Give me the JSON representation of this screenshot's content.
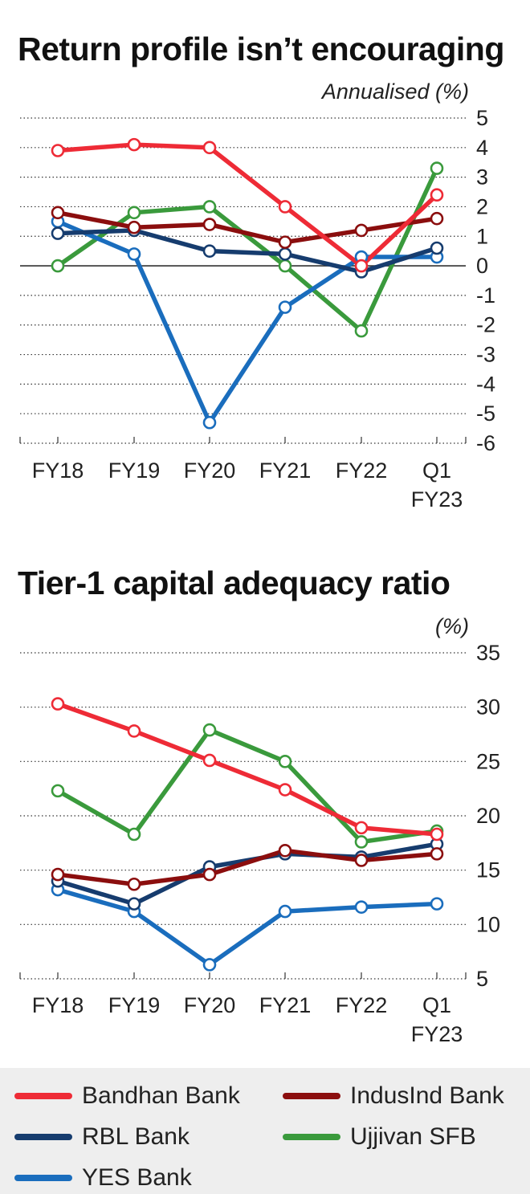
{
  "colors": {
    "Bandhan Bank": "#ee2b36",
    "IndusInd Bank": "#8b0e0e",
    "RBL Bank": "#163c6e",
    "Ujjivan SFB": "#3a9a3c",
    "YES Bank": "#1a6dbd"
  },
  "chart_data": [
    {
      "type": "line",
      "title": "Return profile isn’t encouraging",
      "ylabel": "Annualised (%)",
      "categories": [
        "FY18",
        "FY19",
        "FY20",
        "FY21",
        "FY22",
        "Q1 FY23"
      ],
      "category_lines": [
        [
          "FY18"
        ],
        [
          "FY19"
        ],
        [
          "FY20"
        ],
        [
          "FY21"
        ],
        [
          "FY22"
        ],
        [
          "Q1",
          "FY23"
        ]
      ],
      "ylim": [
        -6,
        5
      ],
      "yticks": [
        5,
        4,
        3,
        2,
        1,
        0,
        -1,
        -2,
        -3,
        -4,
        -5,
        -6
      ],
      "ytick_labels": [
        "5",
        "4",
        "3",
        "2",
        "1",
        "0",
        "-1",
        "-2",
        "-3",
        "-4",
        "-5",
        "-6"
      ],
      "grid": true,
      "series": [
        {
          "name": "Ujjivan SFB",
          "values": [
            0.0,
            1.8,
            2.0,
            0.0,
            -2.2,
            3.3
          ]
        },
        {
          "name": "YES Bank",
          "values": [
            1.5,
            0.4,
            -5.3,
            -1.4,
            0.3,
            0.3
          ]
        },
        {
          "name": "RBL Bank",
          "values": [
            1.1,
            1.2,
            0.5,
            0.4,
            -0.2,
            0.6
          ]
        },
        {
          "name": "IndusInd Bank",
          "values": [
            1.8,
            1.3,
            1.4,
            0.8,
            1.2,
            1.6
          ]
        },
        {
          "name": "Bandhan Bank",
          "values": [
            3.9,
            4.1,
            4.0,
            2.0,
            0.0,
            2.4
          ]
        }
      ]
    },
    {
      "type": "line",
      "title": "Tier-1 capital adequacy ratio",
      "ylabel": "(%)",
      "categories": [
        "FY18",
        "FY19",
        "FY20",
        "FY21",
        "FY22",
        "Q1 FY23"
      ],
      "category_lines": [
        [
          "FY18"
        ],
        [
          "FY19"
        ],
        [
          "FY20"
        ],
        [
          "FY21"
        ],
        [
          "FY22"
        ],
        [
          "Q1",
          "FY23"
        ]
      ],
      "ylim": [
        5,
        35
      ],
      "yticks": [
        35,
        30,
        25,
        20,
        15,
        10,
        5
      ],
      "ytick_labels": [
        "35",
        "30",
        "25",
        "20",
        "15",
        "10",
        "5"
      ],
      "grid": true,
      "series": [
        {
          "name": "YES Bank",
          "values": [
            13.2,
            11.2,
            6.3,
            11.2,
            11.6,
            11.9
          ]
        },
        {
          "name": "RBL Bank",
          "values": [
            14.0,
            11.9,
            15.3,
            16.5,
            16.2,
            17.4
          ]
        },
        {
          "name": "IndusInd Bank",
          "values": [
            14.6,
            13.7,
            14.6,
            16.8,
            15.9,
            16.5
          ]
        },
        {
          "name": "Ujjivan SFB",
          "values": [
            22.3,
            18.3,
            27.9,
            25.0,
            17.6,
            18.6
          ]
        },
        {
          "name": "Bandhan Bank",
          "values": [
            30.3,
            27.8,
            25.1,
            22.4,
            18.9,
            18.3
          ]
        }
      ]
    }
  ],
  "legend": {
    "items": [
      {
        "label": "Bandhan Bank",
        "color": "#ee2b36"
      },
      {
        "label": "IndusInd Bank",
        "color": "#8b0e0e"
      },
      {
        "label": "RBL Bank",
        "color": "#163c6e"
      },
      {
        "label": "Ujjivan SFB",
        "color": "#3a9a3c"
      },
      {
        "label": "YES Bank",
        "color": "#1a6dbd"
      }
    ]
  }
}
